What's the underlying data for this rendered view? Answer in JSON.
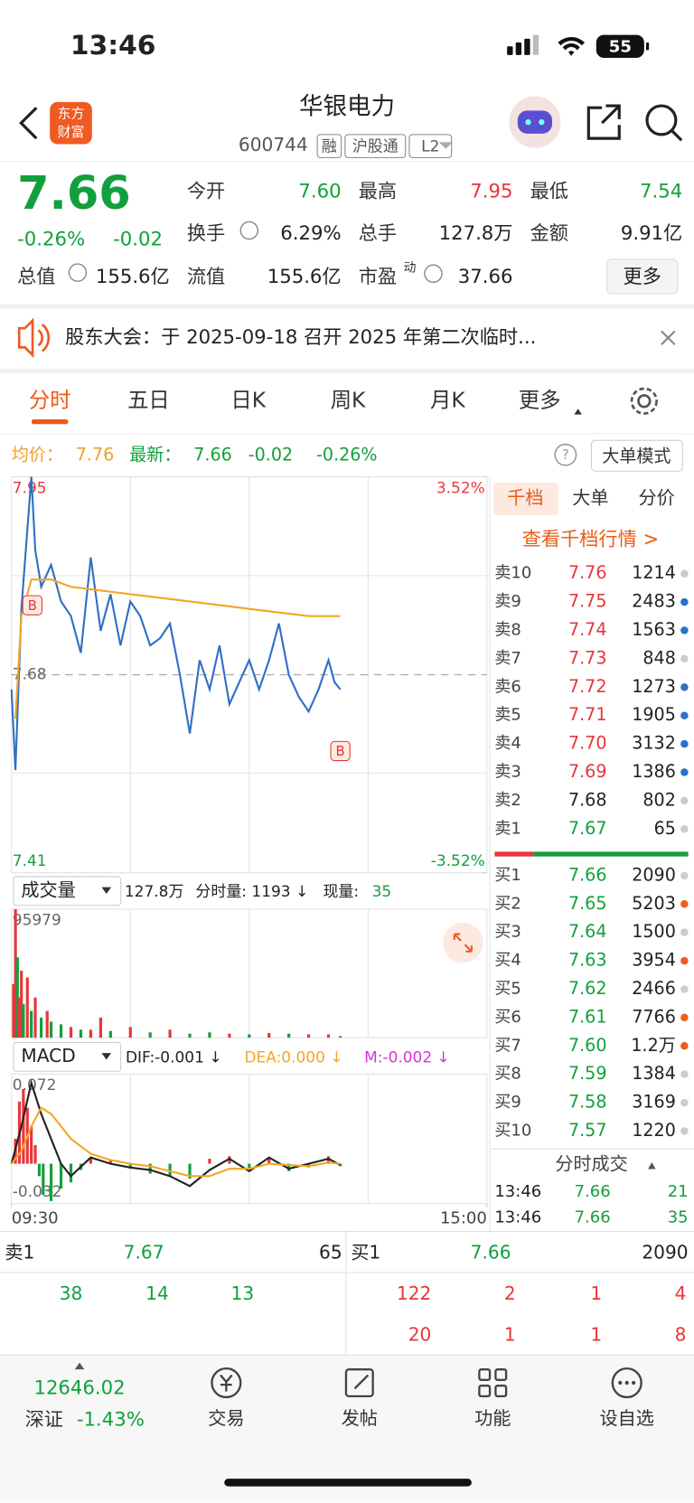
{
  "status_bar": {
    "time": "13:46",
    "battery": "55"
  },
  "header": {
    "title": "华银电力",
    "code": "600744",
    "tags": [
      "融",
      "沪股通",
      "L2"
    ],
    "logo": [
      "东方",
      "财富"
    ]
  },
  "quote": {
    "price": "7.66",
    "change_percent": "-0.26%",
    "change": "-0.02",
    "fields": [
      {
        "label": "今开",
        "value": "7.60",
        "color": "#12a03c"
      },
      {
        "label": "最高",
        "value": "7.95",
        "color": "#e8363a"
      },
      {
        "label": "最低",
        "value": "7.54",
        "color": "#12a03c"
      },
      {
        "label": "换手",
        "value": "6.29%"
      },
      {
        "label": "总手",
        "value": "127.8万"
      },
      {
        "label": "金额",
        "value": "9.91亿"
      },
      {
        "label": "总值",
        "value": "155.6亿"
      },
      {
        "label": "流值",
        "value": "155.6亿"
      },
      {
        "label": "市盈",
        "superscript": "动",
        "value": "37.66"
      }
    ],
    "more_button": "更多"
  },
  "notice": {
    "text": "股东大会：于 2025-09-18 召开 2025 年第二次临时..."
  },
  "tabs": {
    "items": [
      "分时",
      "五日",
      "日K",
      "周K",
      "月K",
      "更多"
    ],
    "active": 0
  },
  "info_line": {
    "avg_label": "均价：",
    "avg": "7.76",
    "latest_label": "最新：",
    "latest": "7.66",
    "change": "-0.02",
    "change_percent": "-0.26%",
    "mode_button": "大单模式"
  },
  "chart_data": [
    {
      "type": "line",
      "xlim": [
        0,
        240
      ],
      "xticks": [
        {
          "value": 0,
          "label": "09:30"
        },
        {
          "value": 240,
          "label": "15:00"
        }
      ],
      "ylim": [
        7.41,
        7.95
      ],
      "yticks": [
        7.95,
        7.68,
        7.41
      ],
      "y2lim": [
        -3.52,
        3.52
      ],
      "y2ticks": [
        {
          "value": 3.52,
          "label": "3.52%"
        },
        {
          "value": -3.52,
          "label": "-3.52%"
        }
      ],
      "markers": [
        "B",
        "B"
      ],
      "series": [
        {
          "color": "#2f6fc6",
          "x": [
            0,
            2,
            5,
            10,
            12,
            15,
            20,
            25,
            30,
            35,
            40,
            45,
            50,
            55,
            60,
            65,
            70,
            75,
            80,
            85,
            90,
            95,
            100,
            105,
            110,
            115,
            120,
            125,
            130,
            135,
            140,
            145,
            150,
            155,
            160,
            163,
            166
          ],
          "values": [
            7.66,
            7.55,
            7.77,
            7.95,
            7.85,
            7.8,
            7.83,
            7.78,
            7.76,
            7.71,
            7.84,
            7.74,
            7.79,
            7.72,
            7.78,
            7.76,
            7.72,
            7.73,
            7.75,
            7.68,
            7.6,
            7.7,
            7.66,
            7.72,
            7.64,
            7.67,
            7.7,
            7.66,
            7.7,
            7.75,
            7.68,
            7.65,
            7.63,
            7.66,
            7.7,
            7.67,
            7.66
          ]
        },
        {
          "color": "#f5a623",
          "x": [
            2,
            5,
            10,
            20,
            30,
            60,
            90,
            120,
            150,
            166
          ],
          "values": [
            7.62,
            7.76,
            7.81,
            7.81,
            7.8,
            7.79,
            7.78,
            7.77,
            7.76,
            7.76
          ]
        }
      ]
    },
    {
      "type": "bar",
      "title": "成交量",
      "total": "127.8万",
      "period_volume": "分时量: 1193 ↓",
      "current_volume_label": "现量:",
      "current_volume": "35",
      "xlim": [
        0,
        240
      ],
      "ylim": [
        0,
        95979
      ],
      "yticks": [
        95979
      ],
      "series": [
        {
          "x": [
            1,
            2,
            3,
            4,
            5,
            6,
            8,
            10,
            12,
            15,
            18,
            20,
            25,
            30,
            35,
            40,
            45,
            50,
            60,
            70,
            80,
            90,
            100,
            110,
            120,
            130,
            140,
            150,
            160,
            166
          ],
          "values": [
            40000,
            95979,
            60000,
            30000,
            50000,
            25000,
            45000,
            20000,
            30000,
            15000,
            20000,
            12000,
            10000,
            8000,
            6000,
            6000,
            15000,
            5000,
            8000,
            4000,
            6000,
            3000,
            4000,
            3000,
            2500,
            3500,
            3000,
            2500,
            2500,
            1193
          ],
          "colors": [
            "#e8363a",
            "#e8363a",
            "#12a03c",
            "#e8363a",
            "#e8363a",
            "#12a03c",
            "#e8363a",
            "#12a03c",
            "#e8363a",
            "#12a03c",
            "#e8363a",
            "#12a03c",
            "#12a03c",
            "#e8363a",
            "#12a03c",
            "#e8363a",
            "#e8363a",
            "#12a03c",
            "#e8363a",
            "#12a03c",
            "#e8363a",
            "#12a03c",
            "#12a03c",
            "#e8363a",
            "#12a03c",
            "#e8363a",
            "#12a03c",
            "#e8363a",
            "#e8363a",
            "#12a03c"
          ]
        }
      ]
    },
    {
      "type": "combo",
      "title": "MACD",
      "xlim": [
        0,
        240
      ],
      "ylim": [
        -0.032,
        0.072
      ],
      "yticks": [
        0.072,
        -0.032
      ],
      "series": [
        {
          "name": "DIF:-0.001 ↓",
          "type": "line",
          "color": "#222222",
          "x": [
            0,
            5,
            10,
            15,
            20,
            25,
            30,
            40,
            50,
            60,
            70,
            80,
            90,
            100,
            110,
            120,
            130,
            140,
            150,
            160,
            166
          ],
          "values": [
            0,
            0.03,
            0.065,
            0.04,
            0.02,
            0.0,
            -0.01,
            0.005,
            0.0,
            -0.003,
            -0.005,
            -0.01,
            -0.018,
            -0.005,
            0.004,
            -0.006,
            0.005,
            -0.004,
            0.0,
            0.004,
            -0.001
          ]
        },
        {
          "name": "DEA:0.000 ↓",
          "type": "line",
          "color": "#f5a623",
          "x": [
            0,
            5,
            10,
            15,
            20,
            25,
            30,
            40,
            50,
            60,
            70,
            80,
            90,
            100,
            110,
            120,
            130,
            140,
            150,
            160,
            166
          ],
          "values": [
            0,
            0.01,
            0.03,
            0.045,
            0.04,
            0.03,
            0.02,
            0.008,
            0.003,
            0.0,
            -0.002,
            -0.006,
            -0.01,
            -0.01,
            -0.004,
            -0.004,
            0.0,
            -0.001,
            -0.002,
            0.001,
            0.0
          ]
        },
        {
          "name": "M:-0.002 ↓",
          "type": "bar",
          "color": "#d633d6",
          "up_color": "#e8363a",
          "down_color": "#12a03c",
          "x": [
            2,
            4,
            6,
            8,
            10,
            12,
            14,
            16,
            20,
            25,
            30,
            35,
            40,
            50,
            60,
            70,
            80,
            90,
            100,
            110,
            120,
            130,
            140,
            150,
            160,
            166
          ],
          "values": [
            0.02,
            0.05,
            0.06,
            0.045,
            0.03,
            0.015,
            -0.01,
            -0.025,
            -0.03,
            -0.02,
            -0.015,
            -0.005,
            0.005,
            0.003,
            -0.004,
            -0.008,
            -0.01,
            -0.012,
            0.004,
            0.006,
            -0.004,
            0.005,
            -0.006,
            -0.003,
            0.006,
            -0.002
          ]
        }
      ]
    }
  ],
  "order_book": {
    "tabs": [
      "千档",
      "大单",
      "分价"
    ],
    "link": "查看千档行情 >",
    "prev_close": "7.68",
    "sells": [
      {
        "label": "卖10",
        "price": "7.76",
        "volume": "1214",
        "dot": "#cccccc"
      },
      {
        "label": "卖9",
        "price": "7.75",
        "volume": "2483",
        "dot": "#2f6fc6"
      },
      {
        "label": "卖8",
        "price": "7.74",
        "volume": "1563",
        "dot": "#2f6fc6"
      },
      {
        "label": "卖7",
        "price": "7.73",
        "volume": "848",
        "dot": "#cccccc"
      },
      {
        "label": "卖6",
        "price": "7.72",
        "volume": "1273",
        "dot": "#2f6fc6"
      },
      {
        "label": "卖5",
        "price": "7.71",
        "volume": "1905",
        "dot": "#2f6fc6"
      },
      {
        "label": "卖4",
        "price": "7.70",
        "volume": "3132",
        "dot": "#2f6fc6"
      },
      {
        "label": "卖3",
        "price": "7.69",
        "volume": "1386",
        "dot": "#2f6fc6"
      },
      {
        "label": "卖2",
        "price": "7.68",
        "volume": "802",
        "dot": "#cccccc"
      },
      {
        "label": "卖1",
        "price": "7.67",
        "volume": "65",
        "dot": "#cccccc"
      }
    ],
    "buys": [
      {
        "label": "买1",
        "price": "7.66",
        "volume": "2090",
        "dot": "#cccccc"
      },
      {
        "label": "买2",
        "price": "7.65",
        "volume": "5203",
        "dot": "#f05a23"
      },
      {
        "label": "买3",
        "price": "7.64",
        "volume": "1500",
        "dot": "#cccccc"
      },
      {
        "label": "买4",
        "price": "7.63",
        "volume": "3954",
        "dot": "#f05a23"
      },
      {
        "label": "买5",
        "price": "7.62",
        "volume": "2466",
        "dot": "#cccccc"
      },
      {
        "label": "买6",
        "price": "7.61",
        "volume": "7766",
        "dot": "#f05a23"
      },
      {
        "label": "买7",
        "price": "7.60",
        "volume": "1.2万",
        "dot": "#f05a23"
      },
      {
        "label": "买8",
        "price": "7.59",
        "volume": "1384",
        "dot": "#cccccc"
      },
      {
        "label": "买9",
        "price": "7.58",
        "volume": "3169",
        "dot": "#cccccc"
      },
      {
        "label": "买10",
        "price": "7.57",
        "volume": "1220",
        "dot": "#cccccc"
      }
    ]
  },
  "trades": {
    "title": "分时成交",
    "rows": [
      {
        "time": "13:46",
        "price": "7.66",
        "volume": "21"
      },
      {
        "time": "13:46",
        "price": "7.66",
        "volume": "35"
      }
    ]
  },
  "level1": {
    "sell": {
      "label": "卖1",
      "price": "7.67",
      "volume": "65",
      "queue": [
        "38",
        "14",
        "13"
      ]
    },
    "buy": {
      "label": "买1",
      "price": "7.66",
      "volume": "2090",
      "queue": [
        [
          "122",
          "2",
          "1",
          "4"
        ],
        [
          "20",
          "1",
          "1",
          "8"
        ]
      ]
    }
  },
  "bottom_nav": {
    "index_value": "12646.02",
    "index_name": "深证",
    "index_change": "-1.43%",
    "items": [
      "交易",
      "发帖",
      "功能",
      "设自选"
    ]
  }
}
